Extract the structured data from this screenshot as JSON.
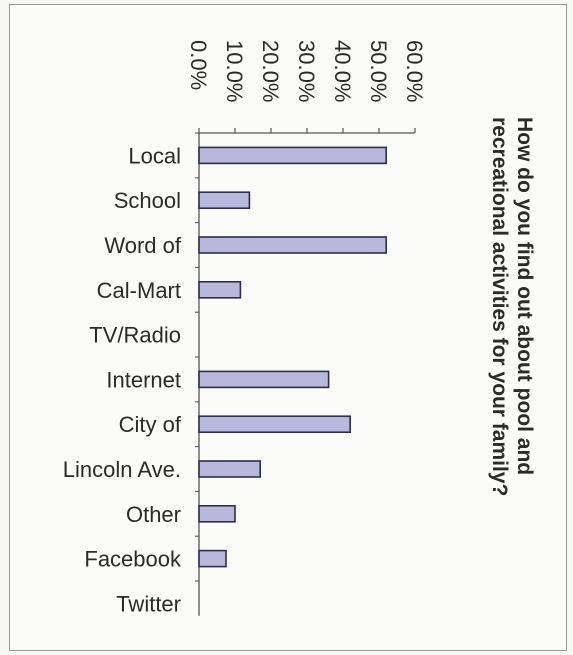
{
  "chart_data": {
    "type": "bar",
    "orientation": "horizontal",
    "title_lines": [
      "How do you find out about pool and",
      "recreational activities for your family?"
    ],
    "categories": [
      "Local",
      "School",
      "Word of",
      "Cal-Mart",
      "TV/Radio",
      "Internet",
      "City of",
      "Lincoln Ave.",
      "Other",
      "Facebook",
      "Twitter"
    ],
    "values": [
      52.0,
      14.0,
      52.0,
      11.5,
      0,
      36.0,
      42.0,
      17.0,
      10.0,
      7.5,
      0
    ],
    "value_axis": {
      "min": 0,
      "max": 60,
      "ticks": [
        0,
        10,
        20,
        30,
        40,
        50,
        60
      ],
      "tick_labels": [
        "0.0%",
        "10.0%",
        "20.0%",
        "30.0%",
        "40.0%",
        "50.0%",
        "60.0%"
      ]
    },
    "grid": false,
    "legend": "none",
    "bar_color": "#b8b8dd",
    "bar_edge_color": "#2e2e4a",
    "rotation": "chart rotated 90 degrees clockwise on the page"
  }
}
